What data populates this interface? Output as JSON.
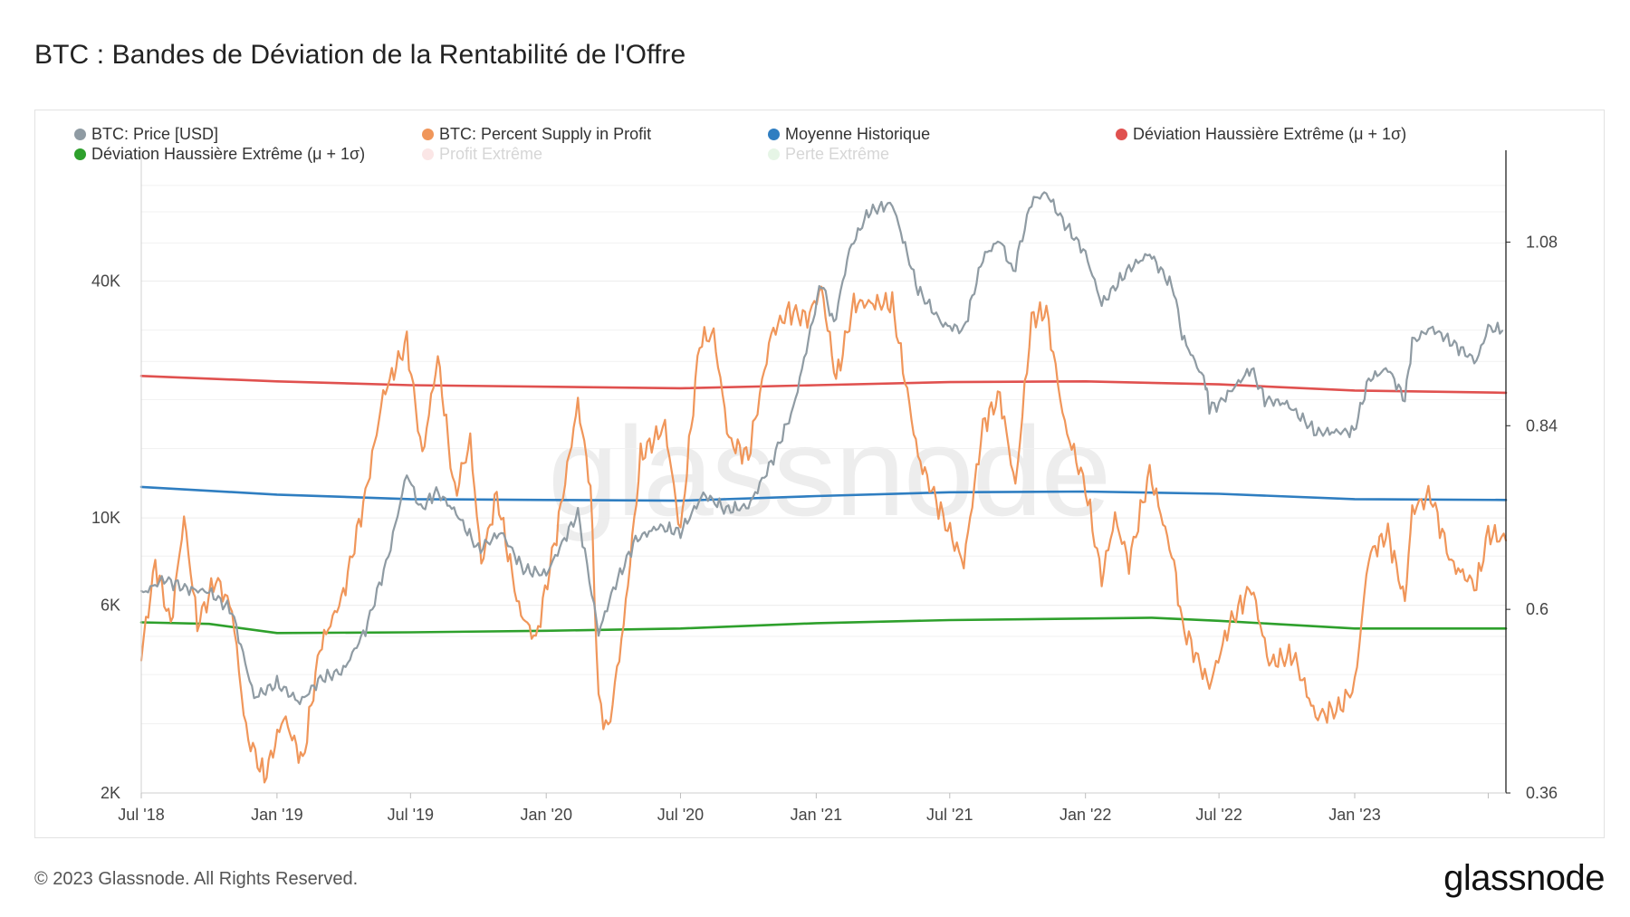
{
  "header": {
    "title": "BTC : Bandes de Déviation de la Rentabilité de l'Offre"
  },
  "footer": {
    "copyright": "© 2023 Glassnode. All Rights Reserved.",
    "brand": "glassnode"
  },
  "watermark": "glassnode",
  "chart_data": {
    "type": "line",
    "title": "BTC : Bandes de Déviation de la Rentabilité de l'Offre",
    "legend_placement": "top",
    "grid": true,
    "x_tick_labels": [
      "Jul '18",
      "Jan '19",
      "Jul '19",
      "Jan '20",
      "Jul '20",
      "Jan '21",
      "Jul '21",
      "Jan '22",
      "Jul '22",
      "Jan '23"
    ],
    "xlim": [
      "2018-07-01",
      "2023-07-25"
    ],
    "y_left": {
      "scale": "log",
      "ticks": [
        "2K",
        "6K",
        "10K",
        "40K"
      ],
      "tick_values": [
        2000,
        6000,
        10000,
        40000
      ],
      "range": [
        2000,
        86000
      ]
    },
    "y_right": {
      "scale": "linear",
      "ticks": [
        "0.36",
        "0.6",
        "0.84",
        "1.08"
      ],
      "tick_values": [
        0.36,
        0.6,
        0.84,
        1.08
      ],
      "range": [
        0.36,
        1.2
      ]
    },
    "series": [
      {
        "name": "BTC: Price [USD]",
        "color": "#8f9ba3",
        "axis": "left",
        "points": [
          [
            "2018-07-01",
            6400
          ],
          [
            "2018-08-01",
            7000
          ],
          [
            "2018-09-01",
            6600
          ],
          [
            "2018-10-01",
            6500
          ],
          [
            "2018-11-01",
            5800
          ],
          [
            "2018-12-01",
            3500
          ],
          [
            "2019-01-01",
            3800
          ],
          [
            "2019-02-01",
            3400
          ],
          [
            "2019-03-01",
            3900
          ],
          [
            "2019-04-01",
            4100
          ],
          [
            "2019-05-01",
            5200
          ],
          [
            "2019-06-01",
            8000
          ],
          [
            "2019-06-26",
            13000
          ],
          [
            "2019-07-15",
            10500
          ],
          [
            "2019-08-05",
            11700
          ],
          [
            "2019-09-01",
            10300
          ],
          [
            "2019-10-01",
            8300
          ],
          [
            "2019-11-01",
            9200
          ],
          [
            "2019-12-01",
            7400
          ],
          [
            "2020-01-01",
            7200
          ],
          [
            "2020-02-13",
            10300
          ],
          [
            "2020-03-12",
            5100
          ],
          [
            "2020-04-01",
            6600
          ],
          [
            "2020-05-01",
            8800
          ],
          [
            "2020-06-01",
            9500
          ],
          [
            "2020-07-01",
            9200
          ],
          [
            "2020-08-01",
            11500
          ],
          [
            "2020-09-01",
            10500
          ],
          [
            "2020-10-01",
            10700
          ],
          [
            "2020-11-01",
            13800
          ],
          [
            "2020-12-01",
            19000
          ],
          [
            "2021-01-08",
            40000
          ],
          [
            "2021-01-25",
            31000
          ],
          [
            "2021-02-15",
            48000
          ],
          [
            "2021-03-13",
            60000
          ],
          [
            "2021-04-14",
            63000
          ],
          [
            "2021-05-19",
            38000
          ],
          [
            "2021-06-22",
            31000
          ],
          [
            "2021-07-20",
            30000
          ],
          [
            "2021-08-15",
            46000
          ],
          [
            "2021-09-07",
            51000
          ],
          [
            "2021-09-25",
            42000
          ],
          [
            "2021-10-20",
            64000
          ],
          [
            "2021-11-09",
            67000
          ],
          [
            "2021-12-01",
            57000
          ],
          [
            "2022-01-01",
            47000
          ],
          [
            "2022-01-23",
            35000
          ],
          [
            "2022-03-01",
            43000
          ],
          [
            "2022-03-29",
            47000
          ],
          [
            "2022-05-01",
            38000
          ],
          [
            "2022-05-12",
            29000
          ],
          [
            "2022-06-13",
            22000
          ],
          [
            "2022-06-18",
            19000
          ],
          [
            "2022-07-01",
            19500
          ],
          [
            "2022-08-14",
            24000
          ],
          [
            "2022-09-01",
            20000
          ],
          [
            "2022-10-01",
            19500
          ],
          [
            "2022-11-10",
            16500
          ],
          [
            "2022-12-31",
            16600
          ],
          [
            "2023-01-20",
            22500
          ],
          [
            "2023-02-15",
            24000
          ],
          [
            "2023-03-10",
            20000
          ],
          [
            "2023-03-20",
            28000
          ],
          [
            "2023-04-14",
            30400
          ],
          [
            "2023-05-01",
            29000
          ],
          [
            "2023-06-15",
            25000
          ],
          [
            "2023-07-01",
            30500
          ],
          [
            "2023-07-20",
            29900
          ]
        ]
      },
      {
        "name": "BTC: Percent Supply in Profit",
        "color": "#f0965a",
        "axis": "right",
        "points": [
          [
            "2018-07-01",
            0.54
          ],
          [
            "2018-07-20",
            0.66
          ],
          [
            "2018-08-10",
            0.58
          ],
          [
            "2018-08-28",
            0.72
          ],
          [
            "2018-09-15",
            0.58
          ],
          [
            "2018-10-10",
            0.64
          ],
          [
            "2018-11-01",
            0.6
          ],
          [
            "2018-11-20",
            0.44
          ],
          [
            "2018-12-15",
            0.38
          ],
          [
            "2019-01-10",
            0.46
          ],
          [
            "2019-02-05",
            0.4
          ],
          [
            "2019-02-28",
            0.55
          ],
          [
            "2019-04-01",
            0.62
          ],
          [
            "2019-05-01",
            0.75
          ],
          [
            "2019-05-25",
            0.88
          ],
          [
            "2019-06-26",
            0.95
          ],
          [
            "2019-07-17",
            0.8
          ],
          [
            "2019-08-07",
            0.93
          ],
          [
            "2019-08-30",
            0.75
          ],
          [
            "2019-09-20",
            0.82
          ],
          [
            "2019-10-05",
            0.66
          ],
          [
            "2019-10-26",
            0.75
          ],
          [
            "2019-11-25",
            0.6
          ],
          [
            "2019-12-18",
            0.56
          ],
          [
            "2020-01-15",
            0.7
          ],
          [
            "2020-02-13",
            0.87
          ],
          [
            "2020-03-01",
            0.76
          ],
          [
            "2020-03-12",
            0.48
          ],
          [
            "2020-03-25",
            0.44
          ],
          [
            "2020-04-15",
            0.58
          ],
          [
            "2020-05-08",
            0.8
          ],
          [
            "2020-06-10",
            0.84
          ],
          [
            "2020-07-01",
            0.7
          ],
          [
            "2020-07-27",
            0.95
          ],
          [
            "2020-08-15",
            0.96
          ],
          [
            "2020-09-05",
            0.82
          ],
          [
            "2020-10-01",
            0.8
          ],
          [
            "2020-11-01",
            0.96
          ],
          [
            "2020-11-25",
            0.99
          ],
          [
            "2020-12-20",
            0.98
          ],
          [
            "2021-01-08",
            1.02
          ],
          [
            "2021-01-28",
            0.9
          ],
          [
            "2021-02-21",
            1.0
          ],
          [
            "2021-03-13",
            1.0
          ],
          [
            "2021-04-14",
            1.0
          ],
          [
            "2021-05-19",
            0.8
          ],
          [
            "2021-06-22",
            0.72
          ],
          [
            "2021-07-20",
            0.66
          ],
          [
            "2021-08-15",
            0.84
          ],
          [
            "2021-09-07",
            0.88
          ],
          [
            "2021-09-28",
            0.76
          ],
          [
            "2021-10-20",
            0.98
          ],
          [
            "2021-11-09",
            0.99
          ],
          [
            "2021-12-04",
            0.84
          ],
          [
            "2022-01-01",
            0.76
          ],
          [
            "2022-01-23",
            0.64
          ],
          [
            "2022-02-10",
            0.72
          ],
          [
            "2022-03-01",
            0.66
          ],
          [
            "2022-03-29",
            0.78
          ],
          [
            "2022-05-01",
            0.66
          ],
          [
            "2022-05-12",
            0.58
          ],
          [
            "2022-06-18",
            0.5
          ],
          [
            "2022-07-15",
            0.58
          ],
          [
            "2022-08-14",
            0.63
          ],
          [
            "2022-09-07",
            0.53
          ],
          [
            "2022-10-10",
            0.54
          ],
          [
            "2022-11-09",
            0.46
          ],
          [
            "2022-12-10",
            0.47
          ],
          [
            "2023-01-01",
            0.5
          ],
          [
            "2023-01-20",
            0.67
          ],
          [
            "2023-02-15",
            0.7
          ],
          [
            "2023-03-10",
            0.61
          ],
          [
            "2023-03-20",
            0.73
          ],
          [
            "2023-04-14",
            0.75
          ],
          [
            "2023-05-12",
            0.66
          ],
          [
            "2023-06-15",
            0.63
          ],
          [
            "2023-07-01",
            0.7
          ],
          [
            "2023-07-25",
            0.69
          ]
        ]
      },
      {
        "name": "Moyenne Historique",
        "color": "#2f7ec1",
        "axis": "right",
        "points": [
          [
            "2018-07-01",
            0.76
          ],
          [
            "2019-01-01",
            0.75
          ],
          [
            "2019-07-01",
            0.744
          ],
          [
            "2020-01-01",
            0.743
          ],
          [
            "2020-07-01",
            0.742
          ],
          [
            "2021-01-01",
            0.748
          ],
          [
            "2021-07-01",
            0.753
          ],
          [
            "2022-01-01",
            0.754
          ],
          [
            "2022-07-01",
            0.751
          ],
          [
            "2023-01-01",
            0.744
          ],
          [
            "2023-07-25",
            0.743
          ]
        ]
      },
      {
        "name": "Déviation Haussière Extrême (μ + 1σ)",
        "color": "#e0514f",
        "axis": "right",
        "points": [
          [
            "2018-07-01",
            0.905
          ],
          [
            "2019-01-01",
            0.898
          ],
          [
            "2019-07-01",
            0.893
          ],
          [
            "2020-01-01",
            0.891
          ],
          [
            "2020-07-01",
            0.889
          ],
          [
            "2021-01-01",
            0.893
          ],
          [
            "2021-07-01",
            0.897
          ],
          [
            "2022-01-01",
            0.898
          ],
          [
            "2022-07-01",
            0.894
          ],
          [
            "2023-01-01",
            0.886
          ],
          [
            "2023-07-25",
            0.883
          ]
        ]
      },
      {
        "name": "Déviation Haussière Extrême (μ + 1σ)",
        "color": "#2ea02c",
        "axis": "right",
        "points": [
          [
            "2018-07-01",
            0.583
          ],
          [
            "2018-10-01",
            0.581
          ],
          [
            "2019-01-01",
            0.569
          ],
          [
            "2019-07-01",
            0.57
          ],
          [
            "2020-01-01",
            0.572
          ],
          [
            "2020-07-01",
            0.575
          ],
          [
            "2021-01-01",
            0.582
          ],
          [
            "2021-07-01",
            0.586
          ],
          [
            "2022-01-01",
            0.588
          ],
          [
            "2022-04-01",
            0.589
          ],
          [
            "2022-07-01",
            0.585
          ],
          [
            "2023-01-01",
            0.575
          ],
          [
            "2023-07-25",
            0.575
          ]
        ]
      },
      {
        "name": "Profit Extrême",
        "color": "#fbe6e6",
        "axis": "right",
        "points": [],
        "hidden": true
      },
      {
        "name": "Perte Extrême",
        "color": "#e6f5e6",
        "axis": "right",
        "points": [],
        "hidden": true
      }
    ]
  }
}
